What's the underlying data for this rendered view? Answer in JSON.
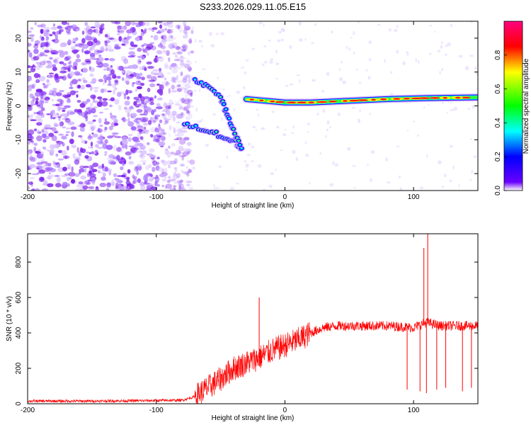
{
  "title": "S233.2026.029.11.05.E15",
  "chart_data": [
    {
      "type": "heatmap",
      "name": "spectrogram",
      "xlabel": "Height of straight line (km)",
      "ylabel": "Frequency (Hz)",
      "xlim": [
        -200,
        150
      ],
      "ylim": [
        -25,
        25
      ],
      "xticks": [
        -200,
        -100,
        0,
        100
      ],
      "yticks": [
        -20,
        -10,
        0,
        10,
        20
      ],
      "colorbar": {
        "label": "Normalized spectral amplitude",
        "range": [
          0,
          1
        ],
        "ticks": [
          0.0,
          0.2,
          0.4,
          0.6,
          0.8
        ],
        "tick_labels": [
          "0.0",
          "0.2",
          "0.4",
          "0.6",
          "0.8"
        ],
        "colors": [
          "#ffffff",
          "#6a00ff",
          "#0000ff",
          "#00ffff",
          "#00ff00",
          "#ffff00",
          "#ff0000",
          "#ff0080"
        ]
      },
      "noise_region_km": [
        -200,
        -80
      ],
      "features": [
        {
          "name": "descending-streak",
          "points": [
            [
              -78,
              -5
            ],
            [
              -65,
              -7
            ],
            [
              -55,
              -8
            ],
            [
              -45,
              -10
            ],
            [
              -37,
              -11
            ],
            [
              -33,
              -13
            ]
          ],
          "intensity": 0.3
        },
        {
          "name": "upper-streak",
          "points": [
            [
              -70,
              8
            ],
            [
              -60,
              6
            ],
            [
              -50,
              2
            ],
            [
              -45,
              -2
            ],
            [
              -40,
              -7
            ],
            [
              -34,
              -12
            ]
          ],
          "intensity": 0.25
        },
        {
          "name": "main-band",
          "points": [
            [
              -30,
              2
            ],
            [
              -15,
              1.5
            ],
            [
              0,
              1
            ],
            [
              20,
              1
            ],
            [
              50,
              1.5
            ],
            [
              80,
              2
            ],
            [
              110,
              2.3
            ],
            [
              150,
              2.5
            ]
          ],
          "intensity": 0.9
        }
      ]
    },
    {
      "type": "line",
      "name": "snr",
      "xlabel": "Height of straight line (km)",
      "ylabel": "SNR (10 * v/v)",
      "xlim": [
        -200,
        150
      ],
      "ylim": [
        0,
        960
      ],
      "xticks": [
        -200,
        -100,
        0,
        100
      ],
      "yticks": [
        0,
        200,
        400,
        600,
        800
      ],
      "color": "#ff0000",
      "series": [
        {
          "name": "SNR",
          "x": [
            -200,
            -150,
            -100,
            -80,
            -70,
            -60,
            -50,
            -40,
            -30,
            -20,
            -10,
            0,
            10,
            20,
            30,
            40,
            60,
            80,
            100,
            110,
            120,
            140,
            150
          ],
          "values": [
            15,
            15,
            18,
            20,
            40,
            90,
            140,
            200,
            230,
            260,
            300,
            330,
            360,
            400,
            430,
            440,
            440,
            440,
            430,
            460,
            440,
            440,
            440
          ]
        }
      ],
      "spikes": [
        {
          "x": -20,
          "y": 600
        },
        {
          "x": 108,
          "y": 880
        },
        {
          "x": 111,
          "y": 960
        },
        {
          "x": 95,
          "y": 80
        },
        {
          "x": 105,
          "y": 70
        },
        {
          "x": 110,
          "y": 60
        },
        {
          "x": 118,
          "y": 80
        },
        {
          "x": 125,
          "y": 90
        },
        {
          "x": 138,
          "y": 70
        },
        {
          "x": 145,
          "y": 90
        }
      ]
    }
  ]
}
